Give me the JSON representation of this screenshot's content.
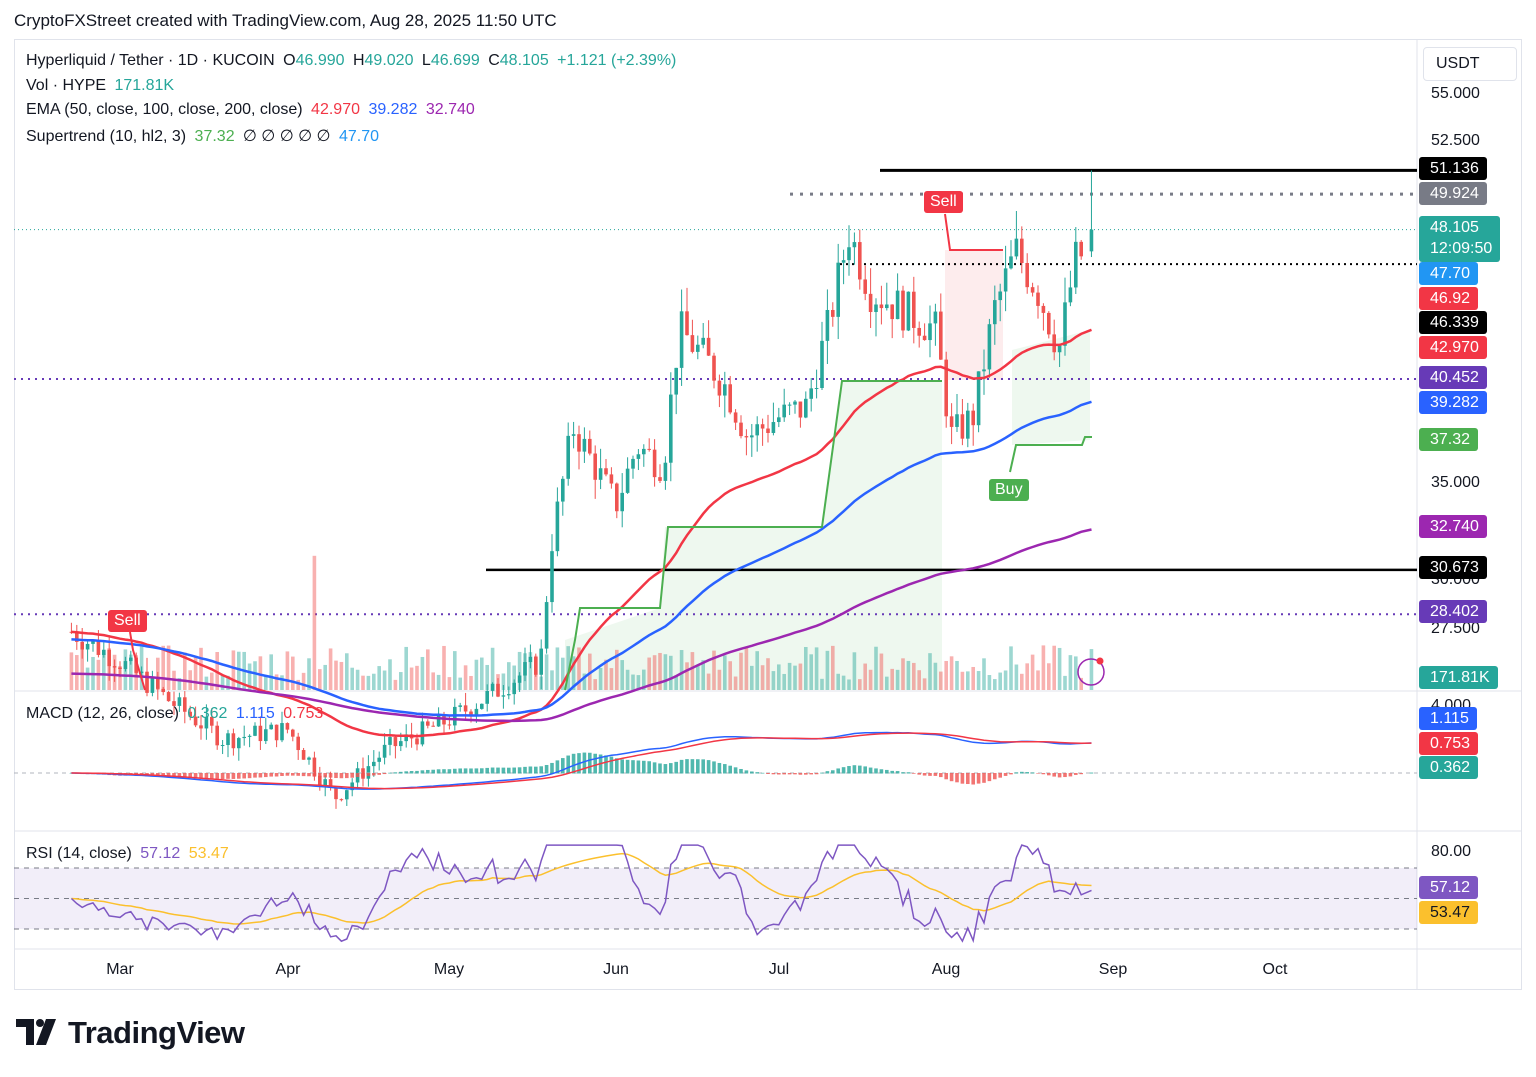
{
  "header": {
    "title": "CryptoFXStreet created with TradingView.com, Aug 28, 2025 11:50 UTC"
  },
  "legend": {
    "symbol": "Hyperliquid / Tether · 1D · KUCOIN",
    "o_label": "O",
    "o_value": "46.990",
    "h_label": "H",
    "h_value": "49.020",
    "l_label": "L",
    "l_value": "46.699",
    "c_label": "C",
    "c_value": "48.105",
    "change": "+1.121 (+2.39%)",
    "vol_label": "Vol · HYPE",
    "vol_value": "171.81K",
    "ema_label": "EMA (50, close, 100, close, 200, close)",
    "ema_50": "42.970",
    "ema_100": "39.282",
    "ema_200": "32.740",
    "st_label": "Supertrend (10, hl2, 3)",
    "st_value": "37.32",
    "st_empty": "∅ ∅ ∅ ∅ ∅",
    "st_value2": "47.70"
  },
  "macd_legend": {
    "label": "MACD (12, 26, close)",
    "hist": "0.362",
    "macd": "1.115",
    "signal": "0.753"
  },
  "rsi_legend": {
    "label": "RSI (14, close)",
    "rsi": "57.12",
    "ma": "53.47"
  },
  "axis": {
    "currency": "USDT",
    "price_ticks": [
      "55.000",
      "52.500",
      "35.000",
      "30.000",
      "27.500"
    ],
    "macd_tick": "4.000",
    "rsi_tick": "80.00",
    "x_ticks": [
      "Mar",
      "Apr",
      "May",
      "Jun",
      "Jul",
      "Aug",
      "Sep",
      "Oct"
    ]
  },
  "price_tags": [
    {
      "text": "51.136",
      "color": "#000000"
    },
    {
      "text": "49.924",
      "color": "#787b86"
    },
    {
      "text": "48.105",
      "color": "#26a69a"
    },
    {
      "text": "12:09:50",
      "color": "#26a69a"
    },
    {
      "text": "47.70",
      "color": "#2196f3"
    },
    {
      "text": "46.92",
      "color": "#f23645"
    },
    {
      "text": "46.339",
      "color": "#000000"
    },
    {
      "text": "42.970",
      "color": "#f23645"
    },
    {
      "text": "40.452",
      "color": "#673ab7"
    },
    {
      "text": "39.282",
      "color": "#2962ff"
    },
    {
      "text": "37.32",
      "color": "#4caf50"
    },
    {
      "text": "32.740",
      "color": "#9c27b0"
    },
    {
      "text": "30.673",
      "color": "#000000"
    },
    {
      "text": "28.402",
      "color": "#673ab7"
    },
    {
      "text": "171.81K",
      "color": "#26a69a"
    }
  ],
  "macd_tags": [
    {
      "text": "1.115",
      "color": "#2962ff"
    },
    {
      "text": "0.753",
      "color": "#f23645"
    },
    {
      "text": "0.362",
      "color": "#26a69a"
    }
  ],
  "rsi_tags": [
    {
      "text": "57.12",
      "color": "#7e57c2"
    },
    {
      "text": "53.47",
      "color": "#fbc02d"
    }
  ],
  "signals": {
    "sell": "Sell",
    "buy": "Buy"
  },
  "logo_text": "TradingView",
  "colors": {
    "up": "#26a69a",
    "down": "#ef5350",
    "ema50": "#f23645",
    "ema100": "#2962ff",
    "ema200": "#9c27b0"
  },
  "chart_data": {
    "type": "candlestick",
    "symbol": "Hyperliquid / Tether",
    "interval": "1D",
    "exchange": "KUCOIN",
    "last_bar": {
      "open": 46.99,
      "high": 49.02,
      "low": 46.699,
      "close": 48.105,
      "change": 1.121,
      "change_pct": 2.39,
      "volume": "171.81K"
    },
    "horizontal_levels": [
      51.136,
      49.924,
      46.339,
      40.452,
      30.673,
      28.402
    ],
    "indicators": {
      "ema50": 42.97,
      "ema100": 39.282,
      "ema200": 32.74,
      "supertrend": 37.32,
      "supertrend_upper": 47.7,
      "level_46_92": 46.92,
      "macd": 1.115,
      "macd_signal": 0.753,
      "macd_hist": 0.362,
      "rsi": 57.12,
      "rsi_ma": 53.47
    },
    "y_ticks": [
      27.5,
      30,
      35,
      52.5,
      55
    ],
    "x_ticks": [
      "Mar",
      "Apr",
      "May",
      "Jun",
      "Jul",
      "Aug",
      "Sep",
      "Oct"
    ],
    "close_path": [
      [
        "Feb 20",
        27.5
      ],
      [
        "Mar 1",
        26.0
      ],
      [
        "Mar 10",
        24.0
      ],
      [
        "Mar 20",
        22.0
      ],
      [
        "Apr 1",
        22.5
      ],
      [
        "Apr 10",
        19.0
      ],
      [
        "Apr 20",
        21.5
      ],
      [
        "May 1",
        23.0
      ],
      [
        "May 10",
        24.5
      ],
      [
        "May 18",
        26.0
      ],
      [
        "May 20",
        32.0
      ],
      [
        "May 24",
        38.0
      ],
      [
        "May 28",
        36.0
      ],
      [
        "Jun 1",
        34.0
      ],
      [
        "Jun 5",
        37.0
      ],
      [
        "Jun 10",
        36.0
      ],
      [
        "Jun 13",
        43.0
      ],
      [
        "Jun 18",
        41.5
      ],
      [
        "Jun 22",
        40.0
      ],
      [
        "Jun 26",
        37.5
      ],
      [
        "Jul 1",
        38.5
      ],
      [
        "Jul 6",
        39.0
      ],
      [
        "Jul 10",
        43.0
      ],
      [
        "Jul 14",
        48.0
      ],
      [
        "Jul 18",
        45.0
      ],
      [
        "Jul 24",
        44.0
      ],
      [
        "Jul 30",
        43.0
      ],
      [
        "Aug 2",
        37.5
      ],
      [
        "Aug 6",
        38.5
      ],
      [
        "Aug 10",
        44.0
      ],
      [
        "Aug 14",
        47.0
      ],
      [
        "Aug 18",
        45.0
      ],
      [
        "Aug 22",
        42.0
      ],
      [
        "Aug 25",
        46.5
      ],
      [
        "Aug 27",
        47.0
      ],
      [
        "Aug 28",
        48.105
      ]
    ],
    "rsi_levels": [
      80,
      70,
      50,
      30
    ]
  }
}
